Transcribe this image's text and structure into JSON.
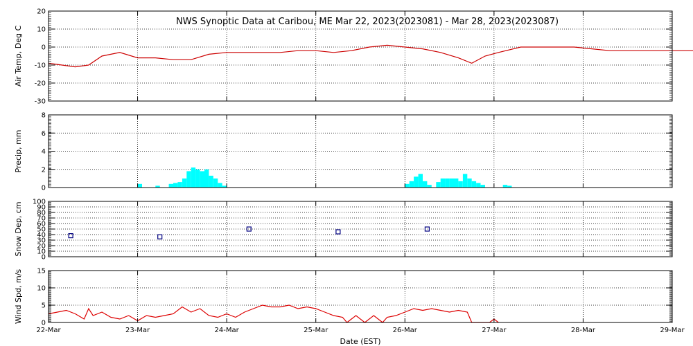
{
  "title": "NWS Synoptic Data at Caribou, ME   Mar 22, 2023(2023081) - Mar 28, 2023(2023087)",
  "xlabel": "Date (EST)",
  "colors": {
    "background": "#ffffff",
    "axes": "#000000",
    "temp_line": "#cc0000",
    "precip_bar": "#00ffff",
    "snow_marker": "#000080",
    "wind_line": "#dd0000"
  },
  "chart_data": [
    {
      "type": "line",
      "ylabel": "Air Temp, Deg C",
      "ylim": [
        -30,
        20
      ],
      "yticks": [
        -30,
        -20,
        -10,
        0,
        10,
        20
      ],
      "x_categories": [
        "22-Mar",
        "23-Mar",
        "24-Mar",
        "25-Mar",
        "26-Mar",
        "27-Mar",
        "28-Mar",
        "29-Mar"
      ],
      "grid": true,
      "series": [
        {
          "points": [
            [
              0.0,
              -9
            ],
            [
              0.15,
              -10
            ],
            [
              0.3,
              -11
            ],
            [
              0.45,
              -10
            ],
            [
              0.6,
              -5
            ],
            [
              0.8,
              -3
            ],
            [
              1.0,
              -6
            ],
            [
              1.2,
              -6
            ],
            [
              1.4,
              -7
            ],
            [
              1.6,
              -7
            ],
            [
              1.8,
              -4
            ],
            [
              2.0,
              -3
            ],
            [
              2.2,
              -3
            ],
            [
              2.4,
              -3
            ],
            [
              2.6,
              -3
            ],
            [
              2.8,
              -2
            ],
            [
              3.0,
              -2
            ],
            [
              3.2,
              -3
            ],
            [
              3.4,
              -2
            ],
            [
              3.6,
              0
            ],
            [
              3.8,
              1
            ],
            [
              4.0,
              0
            ],
            [
              4.2,
              -1
            ],
            [
              4.4,
              -3
            ],
            [
              4.6,
              -6
            ],
            [
              4.75,
              -9
            ],
            [
              4.9,
              -5
            ],
            [
              5.05,
              -3
            ],
            [
              5.3,
              0
            ],
            [
              5.6,
              0
            ],
            [
              5.9,
              0
            ],
            [
              6.1,
              -1
            ],
            [
              6.3,
              -2
            ],
            [
              6.5,
              -2
            ],
            [
              6.8,
              -2
            ],
            [
              7.1,
              -2
            ],
            [
              7.4,
              -2
            ],
            [
              7.6,
              -1
            ],
            [
              7.8,
              -2
            ],
            [
              7.9,
              -2
            ],
            [
              8.1,
              -2
            ]
          ]
        }
      ]
    },
    {
      "type": "bar",
      "ylabel": "Precip, mm",
      "ylim": [
        0,
        8
      ],
      "yticks": [
        0,
        2,
        4,
        6,
        8
      ],
      "x_categories": [
        "22-Mar",
        "23-Mar",
        "24-Mar",
        "25-Mar",
        "26-Mar",
        "27-Mar",
        "28-Mar",
        "29-Mar"
      ],
      "grid": true,
      "series": [
        {
          "points": [
            [
              1.0,
              0.4
            ],
            [
              1.2,
              0.2
            ],
            [
              1.35,
              0.4
            ],
            [
              1.4,
              0.5
            ],
            [
              1.45,
              0.6
            ],
            [
              1.5,
              1.0
            ],
            [
              1.55,
              1.8
            ],
            [
              1.6,
              2.2
            ],
            [
              1.65,
              2.0
            ],
            [
              1.7,
              1.8
            ],
            [
              1.75,
              2.0
            ],
            [
              1.8,
              1.3
            ],
            [
              1.85,
              1.0
            ],
            [
              1.9,
              0.5
            ],
            [
              1.95,
              0.2
            ],
            [
              4.0,
              0.4
            ],
            [
              4.05,
              0.7
            ],
            [
              4.1,
              1.2
            ],
            [
              4.15,
              1.5
            ],
            [
              4.2,
              0.7
            ],
            [
              4.25,
              0.3
            ],
            [
              4.35,
              0.6
            ],
            [
              4.4,
              1.0
            ],
            [
              4.45,
              1.0
            ],
            [
              4.5,
              1.0
            ],
            [
              4.55,
              1.0
            ],
            [
              4.6,
              0.7
            ],
            [
              4.65,
              1.5
            ],
            [
              4.7,
              1.0
            ],
            [
              4.75,
              0.7
            ],
            [
              4.8,
              0.5
            ],
            [
              4.85,
              0.3
            ],
            [
              5.1,
              0.3
            ],
            [
              5.15,
              0.2
            ]
          ]
        }
      ]
    },
    {
      "type": "scatter",
      "ylabel": "Snow Dep, cm",
      "ylim": [
        0,
        100
      ],
      "yticks": [
        0,
        10,
        20,
        30,
        40,
        50,
        60,
        70,
        80,
        90,
        100
      ],
      "x_categories": [
        "22-Mar",
        "23-Mar",
        "24-Mar",
        "25-Mar",
        "26-Mar",
        "27-Mar",
        "28-Mar",
        "29-Mar"
      ],
      "grid": true,
      "series": [
        {
          "points": [
            [
              0.25,
              38
            ],
            [
              1.25,
              36
            ],
            [
              2.25,
              50
            ],
            [
              3.25,
              45
            ],
            [
              4.25,
              50
            ]
          ]
        }
      ]
    },
    {
      "type": "line",
      "ylabel": "Wind Spd, m/s",
      "ylim": [
        0,
        15
      ],
      "yticks": [
        0,
        5,
        10,
        15
      ],
      "x_categories": [
        "22-Mar",
        "23-Mar",
        "24-Mar",
        "25-Mar",
        "26-Mar",
        "27-Mar",
        "28-Mar",
        "29-Mar"
      ],
      "grid": true,
      "series": [
        {
          "points": [
            [
              0.0,
              2.5
            ],
            [
              0.1,
              3
            ],
            [
              0.2,
              3.5
            ],
            [
              0.3,
              2.5
            ],
            [
              0.4,
              1
            ],
            [
              0.45,
              4
            ],
            [
              0.5,
              2
            ],
            [
              0.6,
              3
            ],
            [
              0.7,
              1.5
            ],
            [
              0.8,
              1
            ],
            [
              0.9,
              2
            ],
            [
              1.0,
              0.5
            ],
            [
              1.1,
              2
            ],
            [
              1.2,
              1.5
            ],
            [
              1.3,
              2
            ],
            [
              1.4,
              2.5
            ],
            [
              1.5,
              4.5
            ],
            [
              1.6,
              3
            ],
            [
              1.7,
              4
            ],
            [
              1.8,
              2
            ],
            [
              1.9,
              1.5
            ],
            [
              2.0,
              2.5
            ],
            [
              2.1,
              1.5
            ],
            [
              2.2,
              3
            ],
            [
              2.3,
              4
            ],
            [
              2.4,
              5
            ],
            [
              2.5,
              4.5
            ],
            [
              2.6,
              4.5
            ],
            [
              2.7,
              5
            ],
            [
              2.8,
              4
            ],
            [
              2.9,
              4.5
            ],
            [
              3.0,
              4
            ],
            [
              3.1,
              3
            ],
            [
              3.2,
              2
            ],
            [
              3.3,
              1.5
            ],
            [
              3.35,
              0
            ],
            [
              3.45,
              2
            ],
            [
              3.55,
              0
            ],
            [
              3.65,
              2
            ],
            [
              3.75,
              0
            ],
            [
              3.8,
              1.5
            ],
            [
              3.9,
              2
            ],
            [
              4.0,
              3
            ],
            [
              4.1,
              4
            ],
            [
              4.2,
              3.5
            ],
            [
              4.3,
              4
            ],
            [
              4.4,
              3.5
            ],
            [
              4.5,
              3
            ],
            [
              4.6,
              3.5
            ],
            [
              4.7,
              3
            ],
            [
              4.75,
              0
            ],
            [
              4.85,
              0
            ],
            [
              4.95,
              0
            ],
            [
              5.0,
              1
            ],
            [
              5.05,
              0
            ]
          ]
        }
      ]
    }
  ]
}
